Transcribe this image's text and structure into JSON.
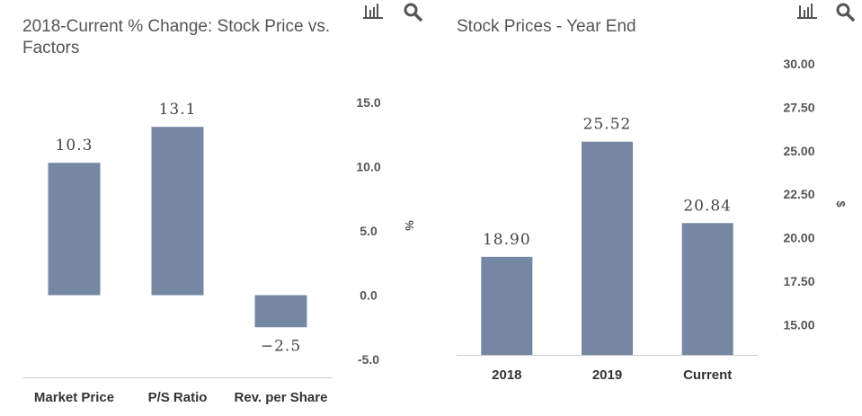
{
  "colors": {
    "bar": "#7587a2",
    "axis_line": "#cccccc",
    "icon": "#555555"
  },
  "icons": [
    "bar-chart-icon",
    "search-icon"
  ],
  "chart_data": [
    {
      "type": "bar",
      "title": "2018-Current % Change: Stock Price vs. Factors",
      "categories": [
        "Market Price",
        "P/S Ratio",
        "Rev. per Share"
      ],
      "values": [
        10.3,
        13.1,
        -2.5
      ],
      "data_labels": [
        "10.3",
        "13.1",
        "−2.5"
      ],
      "ylabel": "%",
      "yticks": [
        "15.0",
        "10.0",
        "5.0",
        "0.0",
        "-5.0"
      ],
      "yticks_values": [
        15,
        10,
        5,
        0,
        -5
      ],
      "ylim": [
        -5,
        15
      ],
      "y_axis_side": "right",
      "grid": false
    },
    {
      "type": "bar",
      "title": "Stock Prices - Year End",
      "categories": [
        "2018",
        "2019",
        "Current"
      ],
      "values": [
        18.9,
        25.52,
        20.84
      ],
      "data_labels": [
        "18.90",
        "25.52",
        "20.84"
      ],
      "ylabel": "$",
      "yticks": [
        "30.00",
        "27.50",
        "25.00",
        "22.50",
        "20.00",
        "17.50",
        "15.00"
      ],
      "yticks_values": [
        30,
        27.5,
        25,
        22.5,
        20,
        17.5,
        15
      ],
      "ylim": [
        13,
        30
      ],
      "y_axis_side": "right",
      "grid": false
    }
  ]
}
